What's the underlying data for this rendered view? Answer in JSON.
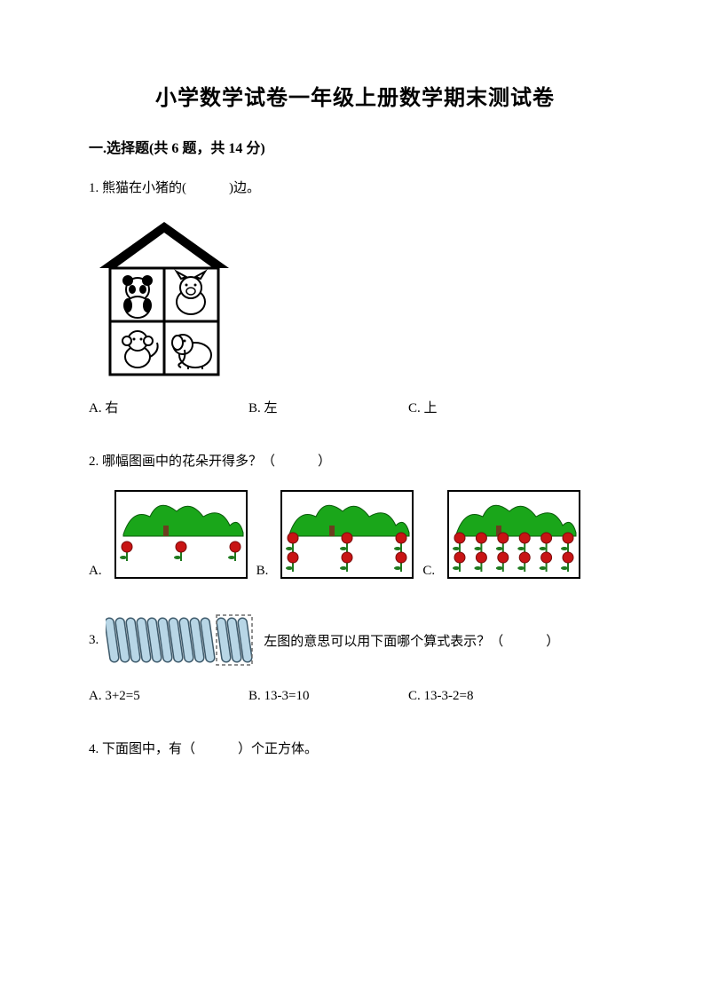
{
  "title": "小学数学试卷一年级上册数学期末测试卷",
  "section1": {
    "heading": "一.选择题(共 6 题，共 14 分)",
    "q1": {
      "stem_pre": "1. 熊猫在小猪的(",
      "stem_post": ")边。",
      "options": {
        "A": "A. 右",
        "B": "B. 左",
        "C": "C. 上"
      },
      "house": {
        "roof_color": "#000000",
        "grid_color": "#000000",
        "cells": [
          "panda",
          "pig",
          "monkey",
          "elephant"
        ]
      }
    },
    "q2": {
      "stem_pre": "2. 哪幅图画中的花朵开得多？（",
      "stem_post": "）",
      "labels": {
        "A": "A.",
        "B": "B.",
        "C": "C."
      },
      "pictures": [
        {
          "flowers": 3,
          "bush_color": "#1aa61a",
          "flower_color": "#c81414",
          "stem_color": "#1f7a1f",
          "border": "#000000"
        },
        {
          "flowers": 6,
          "bush_color": "#1aa61a",
          "flower_color": "#c81414",
          "stem_color": "#1f7a1f",
          "border": "#000000"
        },
        {
          "flowers": 12,
          "bush_color": "#1aa61a",
          "flower_color": "#c81414",
          "stem_color": "#1f7a1f",
          "border": "#000000"
        }
      ]
    },
    "q3": {
      "num": "3.",
      "sticks": {
        "main": 10,
        "dashed": 3,
        "fill": "#b8d6e6",
        "stroke": "#3e5a6b",
        "dash_stroke": "#6b6b6b"
      },
      "stem_pre": "左图的意思可以用下面哪个算式表示？（",
      "stem_post": "）",
      "options": {
        "A": "A. 3+2=5",
        "B": "B. 13-3=10",
        "C": "C. 13-3-2=8"
      }
    },
    "q4": {
      "stem_pre": "4. 下面图中，有（",
      "stem_post": "）个正方体。"
    }
  }
}
